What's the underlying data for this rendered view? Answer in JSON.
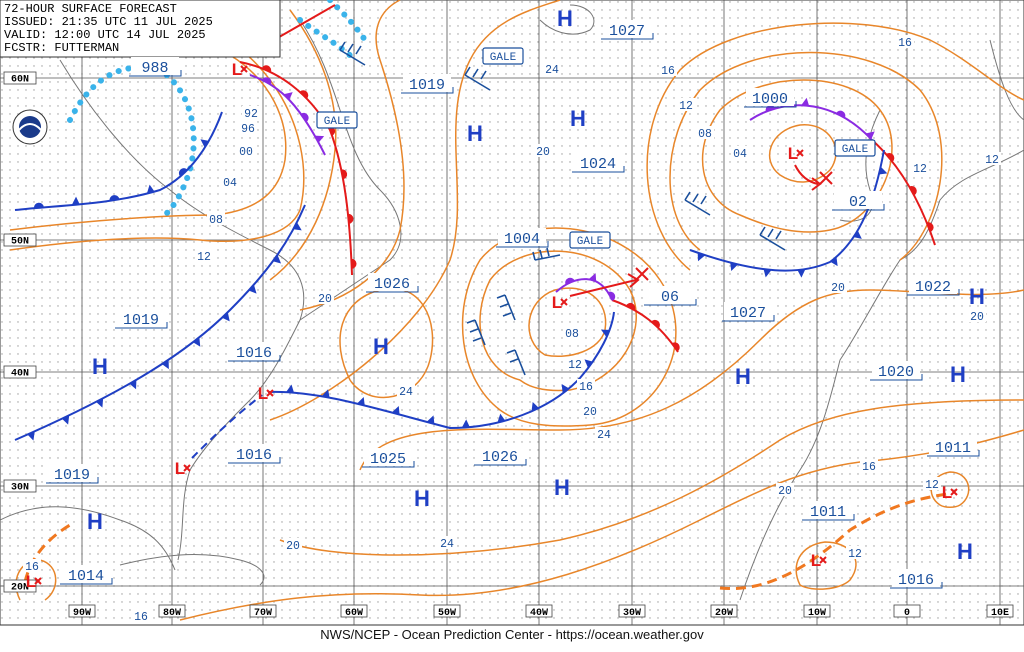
{
  "header": {
    "lines": [
      "72-HOUR SURFACE FORECAST",
      "ISSUED: 21:35 UTC 11 JUL 2025",
      "VALID:  12:00 UTC 14 JUL 2025",
      "FCSTR:  FUTTERMAN"
    ]
  },
  "footer": "NWS/NCEP - Ocean Prediction Center - https://ocean.weather.gov",
  "latitude_labels": [
    "60N",
    "50N",
    "40N",
    "30N",
    "20N"
  ],
  "longitude_labels": [
    "90W",
    "80W",
    "70W",
    "60W",
    "50W",
    "40W",
    "30W",
    "20W",
    "10W",
    "0",
    "10E"
  ],
  "pressure_labels": [
    "988",
    "1027",
    "1019",
    "1000",
    "1024",
    "02",
    "1004",
    "1026",
    "06",
    "1022",
    "1027",
    "1019",
    "1016",
    "1020",
    "1016",
    "1025",
    "1026",
    "1011",
    "1019",
    "1011",
    "1014",
    "1016"
  ],
  "isobar_labels": [
    "92",
    "96",
    "00",
    "04",
    "08",
    "12",
    "20",
    "24",
    "16",
    "24",
    "16",
    "12",
    "08",
    "04",
    "20",
    "12",
    "12",
    "08",
    "12",
    "16",
    "20",
    "24",
    "20",
    "20",
    "16",
    "20",
    "12",
    "12",
    "24",
    "20",
    "16",
    "16"
  ],
  "gale_labels": [
    "GALE",
    "GALE",
    "GALE",
    "GALE"
  ],
  "high_centers": [
    "H",
    "H",
    "H",
    "H",
    "H",
    "H",
    "H",
    "H",
    "H",
    "H",
    "H",
    "H"
  ],
  "low_centers": [
    "L",
    "L",
    "L",
    "L",
    "L",
    "L",
    "L",
    "L"
  ]
}
